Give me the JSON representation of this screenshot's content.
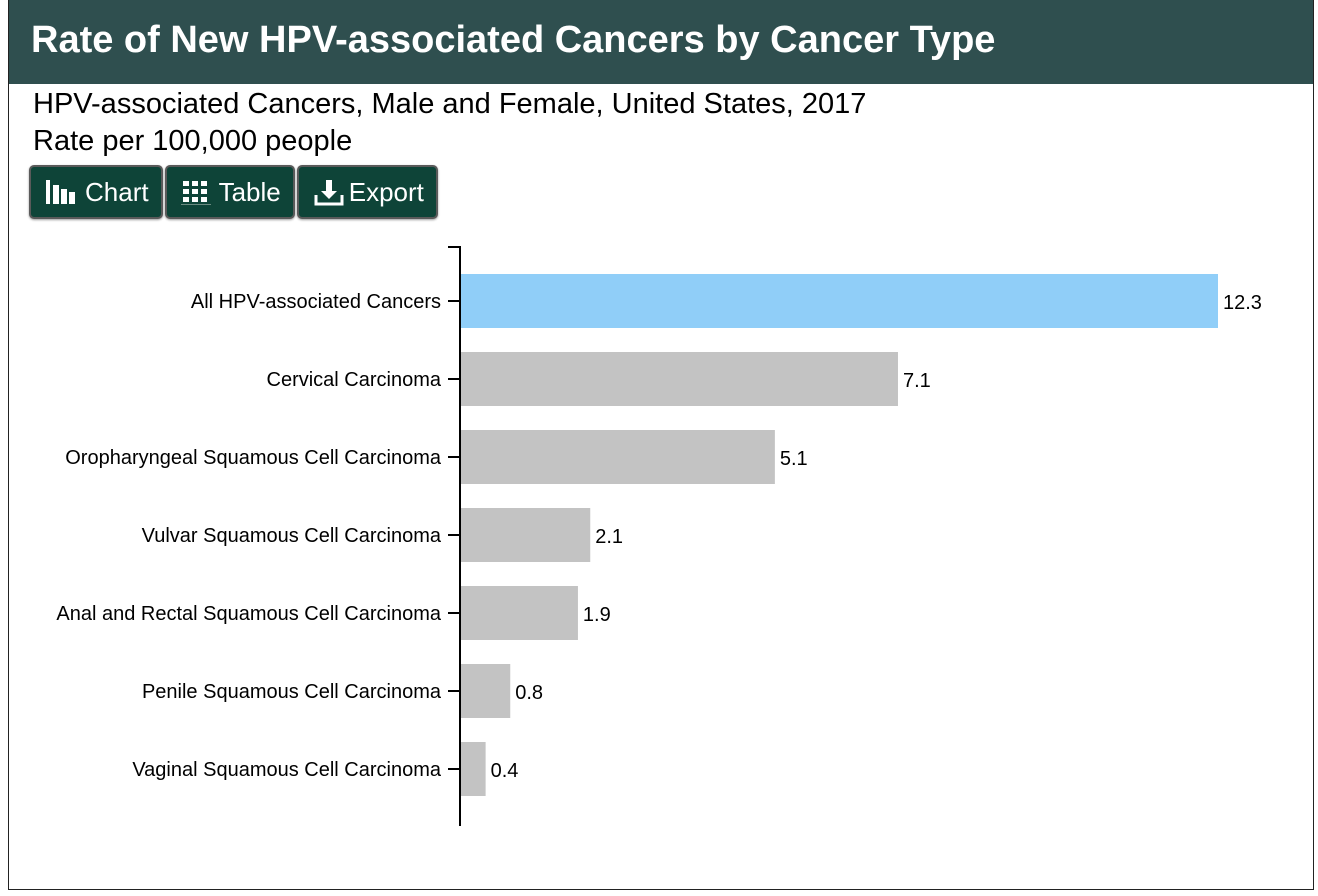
{
  "header": {
    "title": "Rate of New HPV-associated Cancers by Cancer Type"
  },
  "subtitle": {
    "line1": "HPV-associated Cancers, Male and Female, United States, 2017",
    "line2": "Rate per 100,000 people"
  },
  "toolbar": {
    "chart_label": "Chart",
    "chart_icon": "bar-chart-icon",
    "table_label": "Table",
    "table_icon": "grid-icon",
    "export_label": "Export",
    "export_icon": "download-icon"
  },
  "colors": {
    "header_bg": "#2f4f4f",
    "button_bg": "#0e4438",
    "highlight_bar": "#90cef8",
    "default_bar": "#c3c3c3"
  },
  "chart_data": {
    "type": "bar",
    "orientation": "horizontal",
    "categories": [
      "All HPV-associated Cancers",
      "Cervical Carcinoma",
      "Oropharyngeal Squamous Cell Carcinoma",
      "Vulvar Squamous Cell Carcinoma",
      "Anal and Rectal Squamous Cell Carcinoma",
      "Penile Squamous Cell Carcinoma",
      "Vaginal Squamous Cell Carcinoma"
    ],
    "values": [
      12.3,
      7.1,
      5.1,
      2.1,
      1.9,
      0.8,
      0.4
    ],
    "value_labels": [
      "12.3",
      "7.1",
      "5.1",
      "2.1",
      "1.9",
      "0.8",
      "0.4"
    ],
    "highlighted": [
      true,
      false,
      false,
      false,
      false,
      false,
      false
    ],
    "xlim": [
      0,
      12.3
    ],
    "grid": false
  }
}
